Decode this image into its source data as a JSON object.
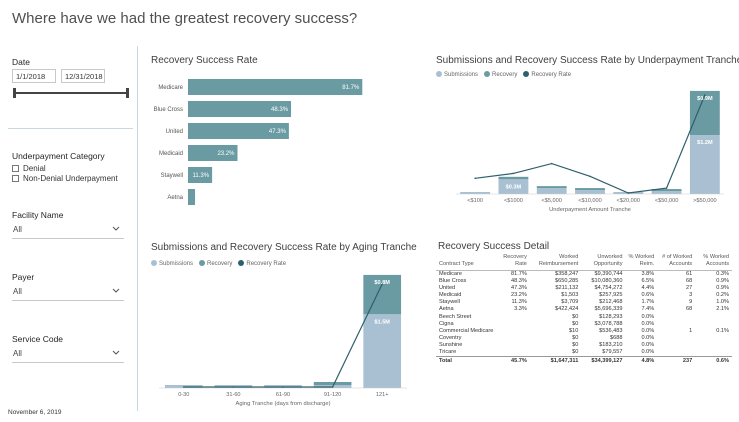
{
  "page": {
    "title": "Where have we had the greatest recovery success?",
    "footer_date": "November 6, 2019"
  },
  "colors": {
    "dark": "#6a9ba3",
    "light": "#a9c0d2",
    "line": "#2d5f6c",
    "divider": "#c7d8e2"
  },
  "filters": {
    "date": {
      "label": "Date",
      "start": "1/1/2018",
      "end": "12/31/2018"
    },
    "underpayment": {
      "label": "Underpayment Category",
      "options": [
        "Denial",
        "Non-Denial Underpayment"
      ]
    },
    "facility": {
      "label": "Facility Name",
      "value": "All"
    },
    "payer": {
      "label": "Payer",
      "value": "All"
    },
    "service": {
      "label": "Service Code",
      "value": "All"
    }
  },
  "chart_data": [
    {
      "type": "bar",
      "title": "Recovery Success Rate",
      "categories": [
        "Medicare",
        "Blue Cross",
        "United",
        "Medicaid",
        "Staywell",
        "Aetna"
      ],
      "values": [
        81.7,
        48.3,
        47.3,
        23.2,
        11.3,
        3.3
      ],
      "labels": [
        "81.7%",
        "48.3%",
        "47.3%",
        "23.2%",
        "11.3%",
        ""
      ],
      "xlim": [
        0,
        90
      ]
    },
    {
      "type": "bar",
      "title": "Submissions and Recovery Success Rate by Underpayment Tranche",
      "legend": [
        "Submissions",
        "Recovery",
        "Recovery Rate"
      ],
      "xlabel": "Underpayment Amount Tranche",
      "categories": [
        "<$100",
        "<$1000",
        "<$5,000",
        "<$10,000",
        "<$20,000",
        "<$50,000",
        ">$50,000"
      ],
      "series": [
        {
          "name": "Submissions",
          "values": [
            0.02,
            0.3,
            0.12,
            0.08,
            0.03,
            0.06,
            1.2
          ]
        },
        {
          "name": "Recovery",
          "values": [
            0.0,
            0.05,
            0.03,
            0.02,
            0.0,
            0.02,
            0.9
          ]
        },
        {
          "name": "Recovery Rate",
          "values": [
            0.15,
            0.2,
            0.3,
            0.17,
            0.0,
            0.05,
            1.0
          ]
        }
      ],
      "data_labels": {
        "submissions_1": "$0.3M",
        "recovery_6": "$0.9M",
        "submissions_6": "$1.2M"
      },
      "ylim": [
        0,
        2.2
      ]
    },
    {
      "type": "bar",
      "title": "Submissions and Recovery Success Rate by Aging Tranche",
      "legend": [
        "Submissions",
        "Recovery",
        "Recovery Rate"
      ],
      "xlabel": "Aging Tranche (days from discharge)",
      "categories": [
        "0-30",
        "31-60",
        "61-90",
        "91-120",
        "121+"
      ],
      "series": [
        {
          "name": "Submissions",
          "values": [
            0.03,
            0.04,
            0.01,
            0.05,
            1.5
          ]
        },
        {
          "name": "Recovery",
          "values": [
            0.0,
            0.0,
            0.0,
            0.03,
            0.8
          ]
        },
        {
          "name": "Recovery Rate",
          "values": [
            0.0,
            0.0,
            0.0,
            0.0,
            1.0
          ]
        }
      ],
      "data_labels": {
        "recovery_4": "$0.8M",
        "submissions_4": "$1.5M"
      },
      "ylim": [
        0,
        2.4
      ]
    },
    {
      "type": "table",
      "title": "Recovery Success Detail",
      "columns": [
        "Contract Type",
        "Recovery Rate",
        "Worked Reimbursement",
        "Unworked Opportunity",
        "% Worked Reim.",
        "# of Worked Accounts",
        "% Worked Accounts"
      ],
      "rows": [
        [
          "Medicare",
          "81.7%",
          "$358,247",
          "$9,390,744",
          "3.8%",
          "61",
          "0.3%"
        ],
        [
          "Blue Cross",
          "48.3%",
          "$650,285",
          "$10,080,360",
          "6.5%",
          "68",
          "0.9%"
        ],
        [
          "United",
          "47.3%",
          "$211,132",
          "$4,754,272",
          "4.4%",
          "27",
          "0.9%"
        ],
        [
          "Medicaid",
          "23.2%",
          "$1,503",
          "$257,925",
          "0.6%",
          "3",
          "0.2%"
        ],
        [
          "Staywell",
          "11.3%",
          "$3,709",
          "$212,468",
          "1.7%",
          "9",
          "1.0%"
        ],
        [
          "Aetna",
          "3.3%",
          "$422,424",
          "$5,696,339",
          "7.4%",
          "68",
          "2.1%"
        ],
        [
          "Beech Street",
          "",
          "$0",
          "$128,293",
          "0.0%",
          "",
          ""
        ],
        [
          "Cigna",
          "",
          "$0",
          "$3,078,788",
          "0.0%",
          "",
          ""
        ],
        [
          "Commercial Medicare",
          "",
          "$10",
          "$536,483",
          "0.0%",
          "1",
          "0.1%"
        ],
        [
          "Coventry",
          "",
          "$0",
          "$688",
          "0.0%",
          "",
          ""
        ],
        [
          "Sunshine",
          "",
          "$0",
          "$183,210",
          "0.0%",
          "",
          ""
        ],
        [
          "Tricare",
          "",
          "$0",
          "$79,557",
          "0.0%",
          "",
          ""
        ]
      ],
      "total": [
        "Total",
        "45.7%",
        "$1,647,311",
        "$34,399,127",
        "4.8%",
        "237",
        "0.6%"
      ]
    }
  ]
}
